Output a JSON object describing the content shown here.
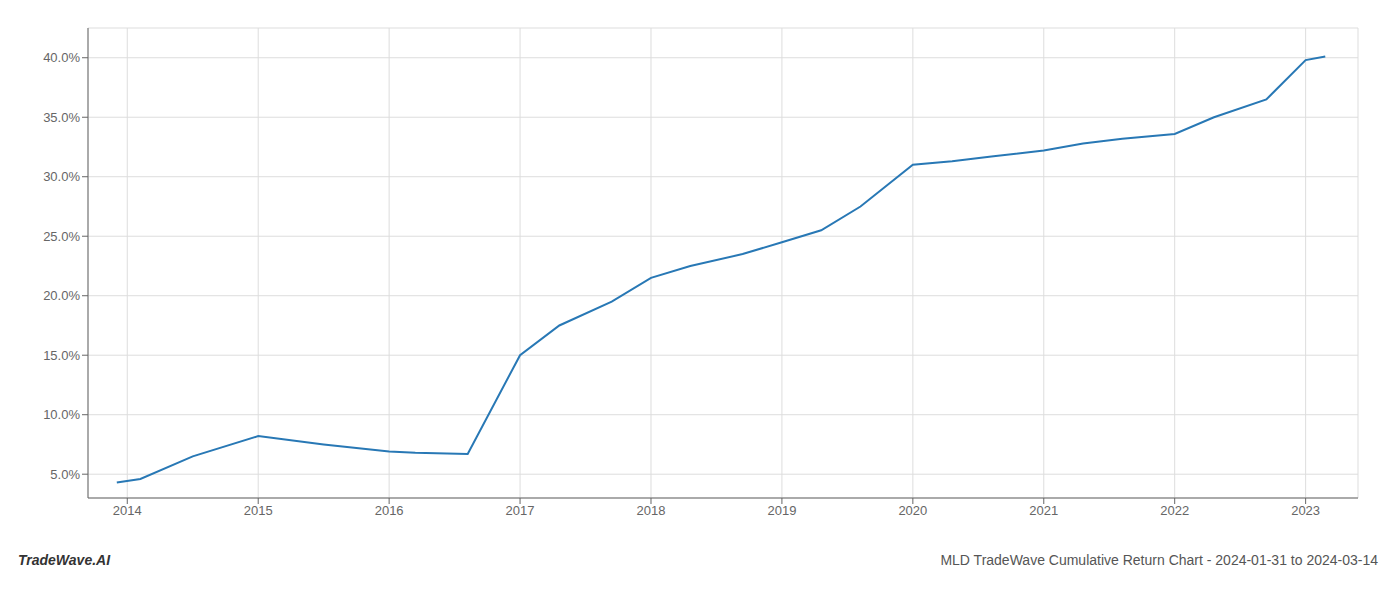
{
  "chart_data": {
    "type": "line",
    "x": [
      2013.92,
      2014.1,
      2014.5,
      2015.0,
      2015.5,
      2016.0,
      2016.2,
      2016.6,
      2017.0,
      2017.3,
      2017.7,
      2018.0,
      2018.3,
      2018.7,
      2019.0,
      2019.3,
      2019.6,
      2020.0,
      2020.3,
      2020.6,
      2021.0,
      2021.3,
      2021.6,
      2022.0,
      2022.3,
      2022.7,
      2023.0,
      2023.15
    ],
    "values": [
      4.3,
      4.6,
      6.5,
      8.2,
      7.5,
      6.9,
      6.8,
      6.7,
      15.0,
      17.5,
      19.5,
      21.5,
      22.5,
      23.5,
      24.5,
      25.5,
      27.5,
      31.0,
      31.3,
      31.7,
      32.2,
      32.8,
      33.2,
      33.6,
      35.0,
      36.5,
      39.8,
      40.1
    ],
    "color": "#2878b5",
    "xlim": [
      2013.7,
      2023.4
    ],
    "ylim": [
      3.0,
      42.5
    ],
    "xticks": [
      2014,
      2015,
      2016,
      2017,
      2018,
      2019,
      2020,
      2021,
      2022,
      2023
    ],
    "yticks": [
      {
        "value": 5.0,
        "label": "5.0%"
      },
      {
        "value": 10.0,
        "label": "10.0%"
      },
      {
        "value": 15.0,
        "label": "15.0%"
      },
      {
        "value": 20.0,
        "label": "20.0%"
      },
      {
        "value": 25.0,
        "label": "25.0%"
      },
      {
        "value": 30.0,
        "label": "30.0%"
      },
      {
        "value": 35.0,
        "label": "35.0%"
      },
      {
        "value": 40.0,
        "label": "40.0%"
      }
    ],
    "grid": true,
    "annotations": [
      "TradeWave.AI",
      "MLD TradeWave Cumulative Return Chart - 2024-01-31 to 2024-03-14"
    ]
  }
}
